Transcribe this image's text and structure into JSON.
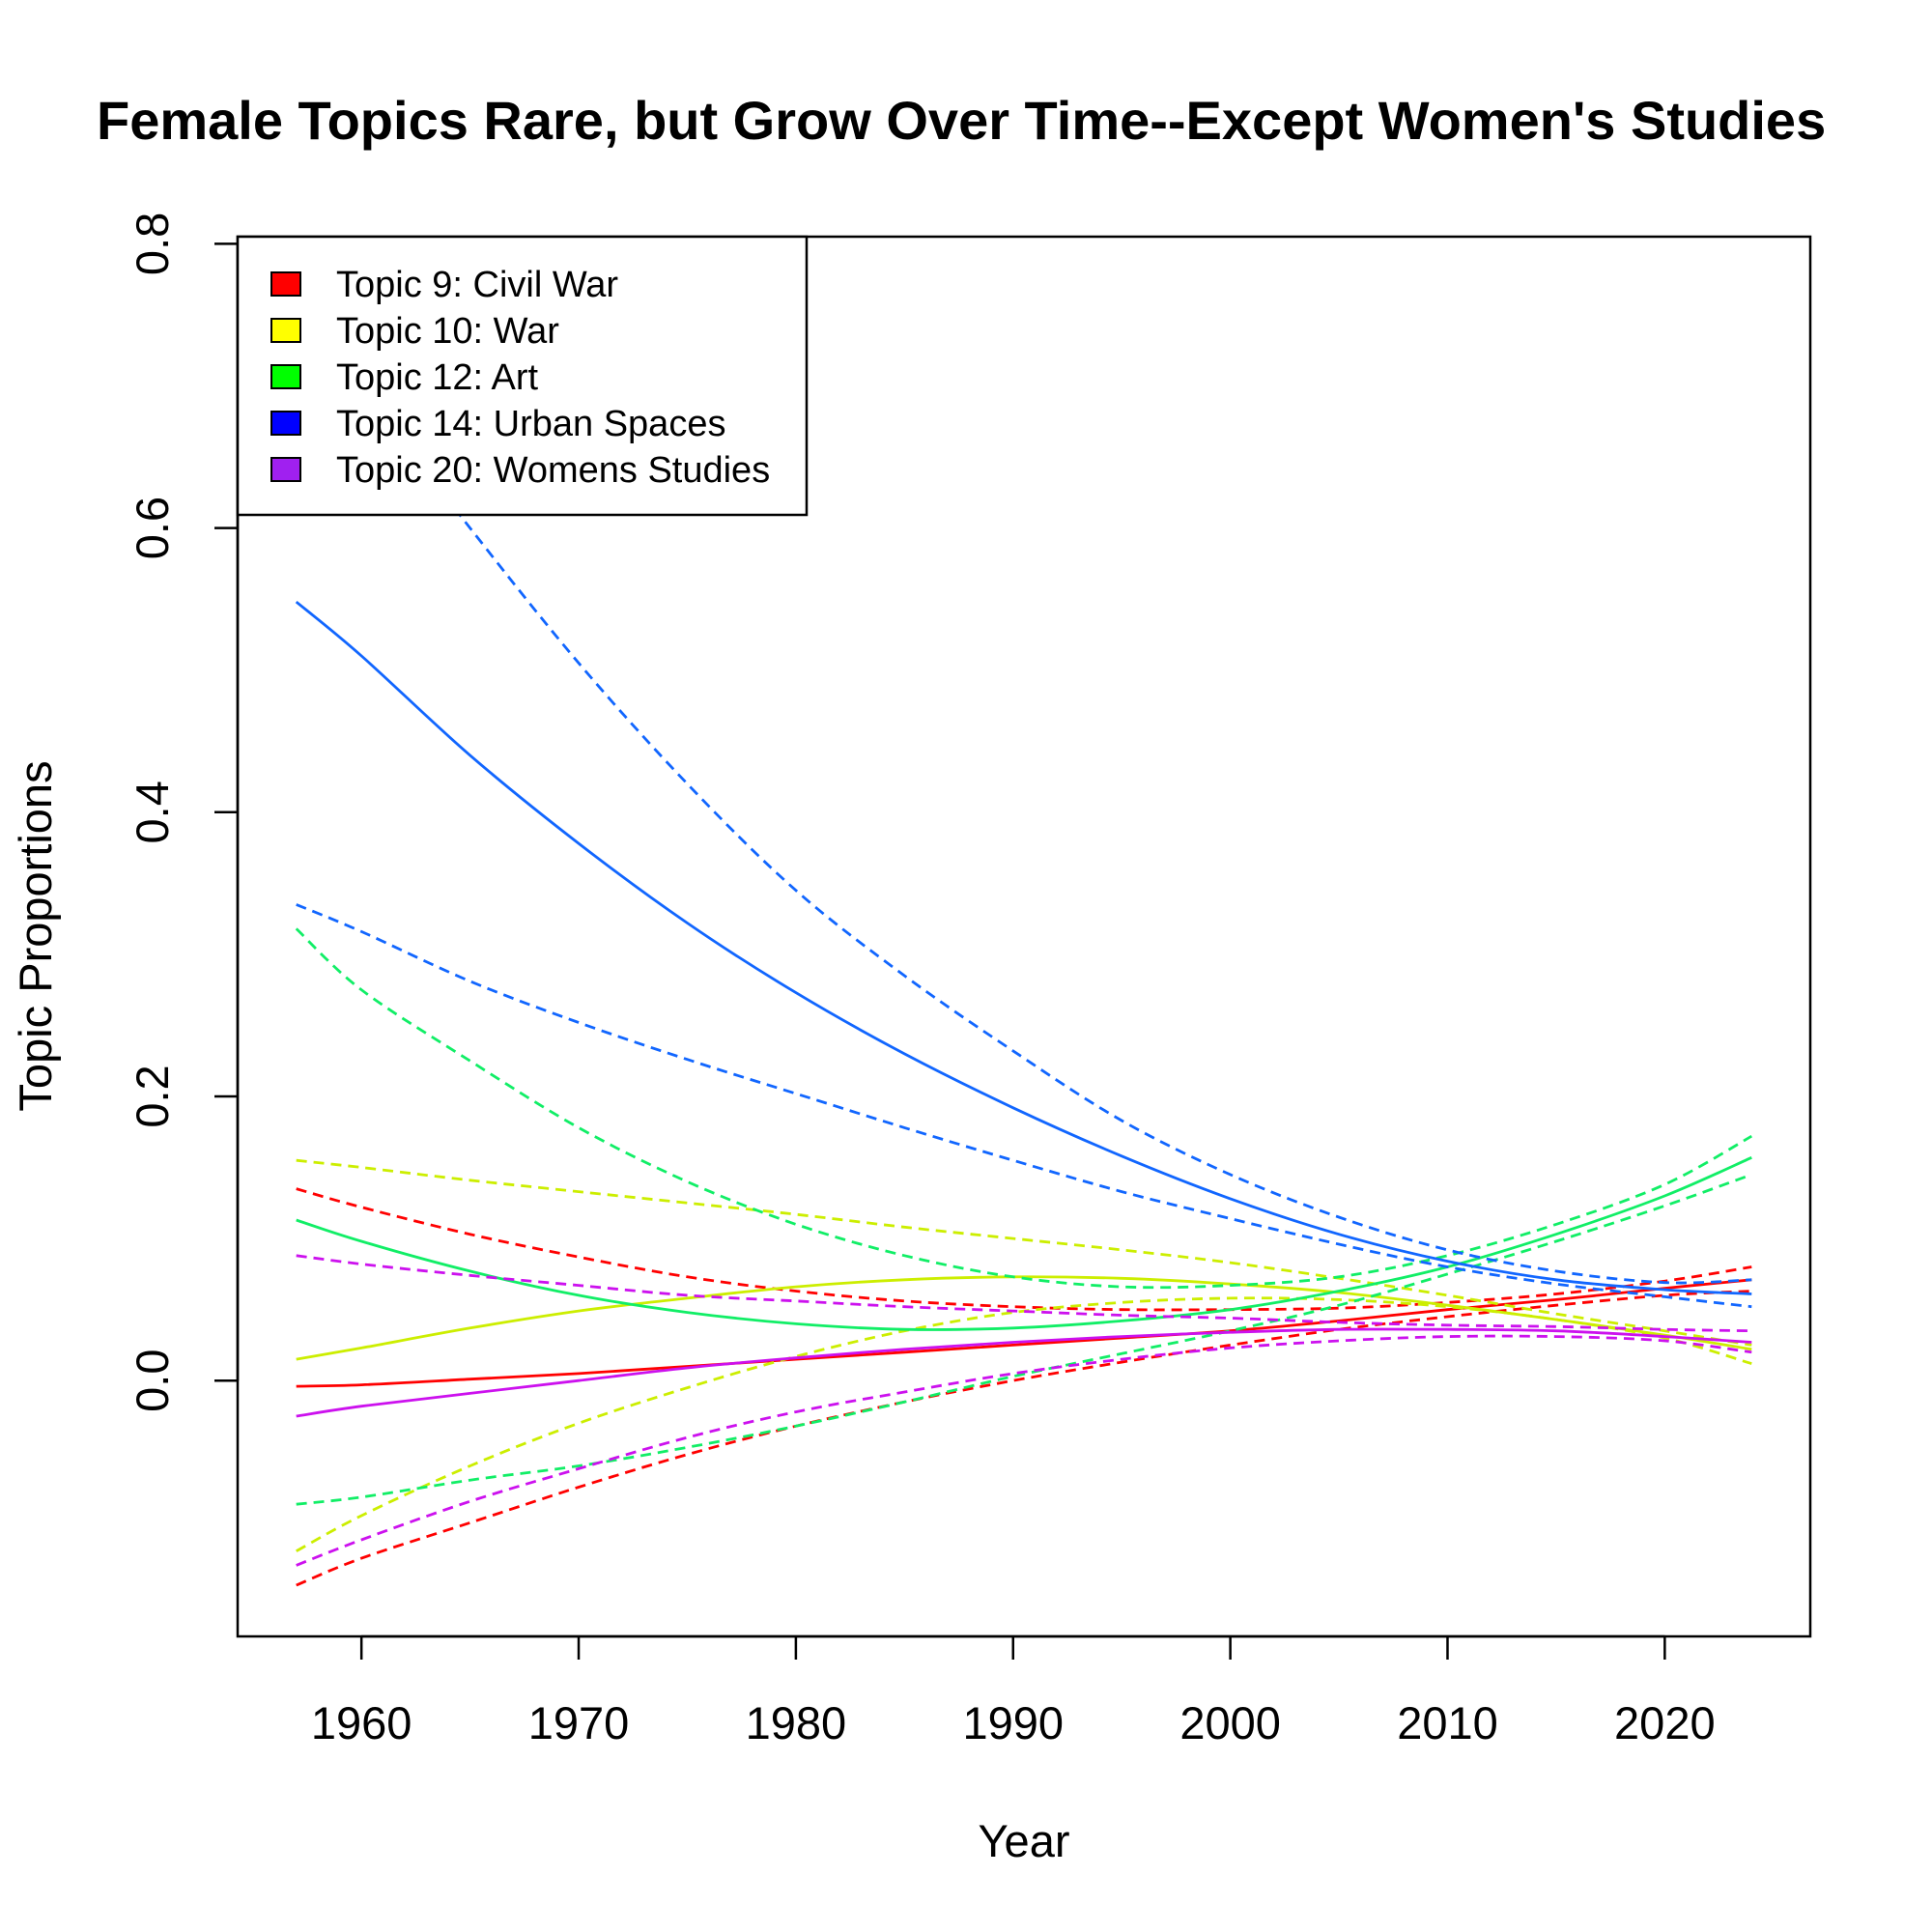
{
  "chart_data": {
    "type": "line",
    "title": "Female Topics Rare, but Grow Over Time--Except Women's Studies",
    "xlabel": "Year",
    "ylabel": "Topic Proportions",
    "xlim": [
      1954.3,
      2026.7
    ],
    "ylim": [
      -0.18,
      0.805
    ],
    "xticks": [
      1960,
      1970,
      1980,
      1990,
      2000,
      2010,
      2020
    ],
    "xtick_labels": [
      "1960",
      "1970",
      "1980",
      "1990",
      "2000",
      "2010",
      "2020"
    ],
    "yticks": [
      0.0,
      0.2,
      0.4,
      0.6,
      0.8
    ],
    "ytick_labels": [
      "0.0",
      "0.2",
      "0.4",
      "0.6",
      "0.8"
    ],
    "grid": false,
    "legend_position": "top-left",
    "x": [
      1957,
      1960,
      1965,
      1970,
      1975,
      1980,
      1985,
      1990,
      1995,
      2000,
      2005,
      2010,
      2015,
      2020,
      2024
    ],
    "series": [
      {
        "name": "Topic 9: Civil War",
        "legend_color": "#ff0000",
        "color": "#ff0000",
        "estimate": [
          -0.004,
          -0.003,
          0.001,
          0.005,
          0.01,
          0.015,
          0.02,
          0.025,
          0.03,
          0.035,
          0.042,
          0.05,
          0.057,
          0.065,
          0.071
        ],
        "lower": [
          -0.144,
          -0.125,
          -0.1,
          -0.075,
          -0.052,
          -0.032,
          -0.015,
          0.0,
          0.013,
          0.025,
          0.036,
          0.045,
          0.053,
          0.06,
          0.063
        ],
        "upper": [
          0.135,
          0.122,
          0.103,
          0.087,
          0.073,
          0.063,
          0.056,
          0.052,
          0.05,
          0.05,
          0.051,
          0.055,
          0.061,
          0.07,
          0.08
        ]
      },
      {
        "name": "Topic 10: War",
        "legend_color": "#ffff00",
        "color": "#ccee00",
        "estimate": [
          0.015,
          0.023,
          0.037,
          0.049,
          0.058,
          0.066,
          0.071,
          0.073,
          0.072,
          0.068,
          0.062,
          0.053,
          0.043,
          0.032,
          0.022
        ],
        "lower": [
          -0.12,
          -0.095,
          -0.06,
          -0.03,
          -0.005,
          0.017,
          0.035,
          0.048,
          0.055,
          0.058,
          0.057,
          0.052,
          0.043,
          0.03,
          0.012
        ],
        "upper": [
          0.155,
          0.15,
          0.141,
          0.133,
          0.125,
          0.117,
          0.108,
          0.1,
          0.092,
          0.083,
          0.072,
          0.06,
          0.047,
          0.035,
          0.025
        ]
      },
      {
        "name": "Topic 12: Art",
        "legend_color": "#00ff00",
        "color": "#11ee66",
        "estimate": [
          0.113,
          0.098,
          0.077,
          0.06,
          0.048,
          0.04,
          0.036,
          0.037,
          0.042,
          0.05,
          0.063,
          0.08,
          0.103,
          0.13,
          0.157
        ],
        "lower": [
          -0.087,
          -0.082,
          -0.07,
          -0.06,
          -0.047,
          -0.032,
          -0.015,
          0.003,
          0.019,
          0.035,
          0.053,
          0.075,
          0.098,
          0.123,
          0.145
        ],
        "upper": [
          0.318,
          0.275,
          0.225,
          0.178,
          0.14,
          0.11,
          0.088,
          0.073,
          0.066,
          0.067,
          0.073,
          0.088,
          0.11,
          0.138,
          0.172
        ]
      },
      {
        "name": "Topic 14: Urban Spaces",
        "legend_color": "#0000ff",
        "color": "#1166ff",
        "estimate": [
          0.548,
          0.51,
          0.44,
          0.378,
          0.322,
          0.273,
          0.23,
          0.192,
          0.158,
          0.128,
          0.103,
          0.084,
          0.071,
          0.064,
          0.061
        ],
        "lower": [
          0.335,
          0.316,
          0.281,
          0.252,
          0.226,
          0.202,
          0.178,
          0.155,
          0.133,
          0.114,
          0.096,
          0.08,
          0.068,
          0.059,
          0.052
        ],
        "upper": [
          0.76,
          0.7,
          0.6,
          0.505,
          0.42,
          0.345,
          0.285,
          0.232,
          0.183,
          0.145,
          0.115,
          0.092,
          0.077,
          0.069,
          0.071
        ]
      },
      {
        "name": "Topic 20: Womens Studies",
        "legend_color": "#a020f0",
        "color": "#cc11ee",
        "estimate": [
          -0.025,
          -0.018,
          -0.009,
          0.0,
          0.009,
          0.016,
          0.022,
          0.027,
          0.031,
          0.034,
          0.036,
          0.036,
          0.035,
          0.031,
          0.027
        ],
        "lower": [
          -0.13,
          -0.112,
          -0.085,
          -0.062,
          -0.04,
          -0.022,
          -0.008,
          0.005,
          0.015,
          0.023,
          0.028,
          0.031,
          0.031,
          0.028,
          0.02
        ],
        "upper": [
          0.088,
          0.082,
          0.074,
          0.067,
          0.06,
          0.056,
          0.052,
          0.049,
          0.046,
          0.044,
          0.041,
          0.039,
          0.038,
          0.036,
          0.035
        ]
      }
    ]
  }
}
